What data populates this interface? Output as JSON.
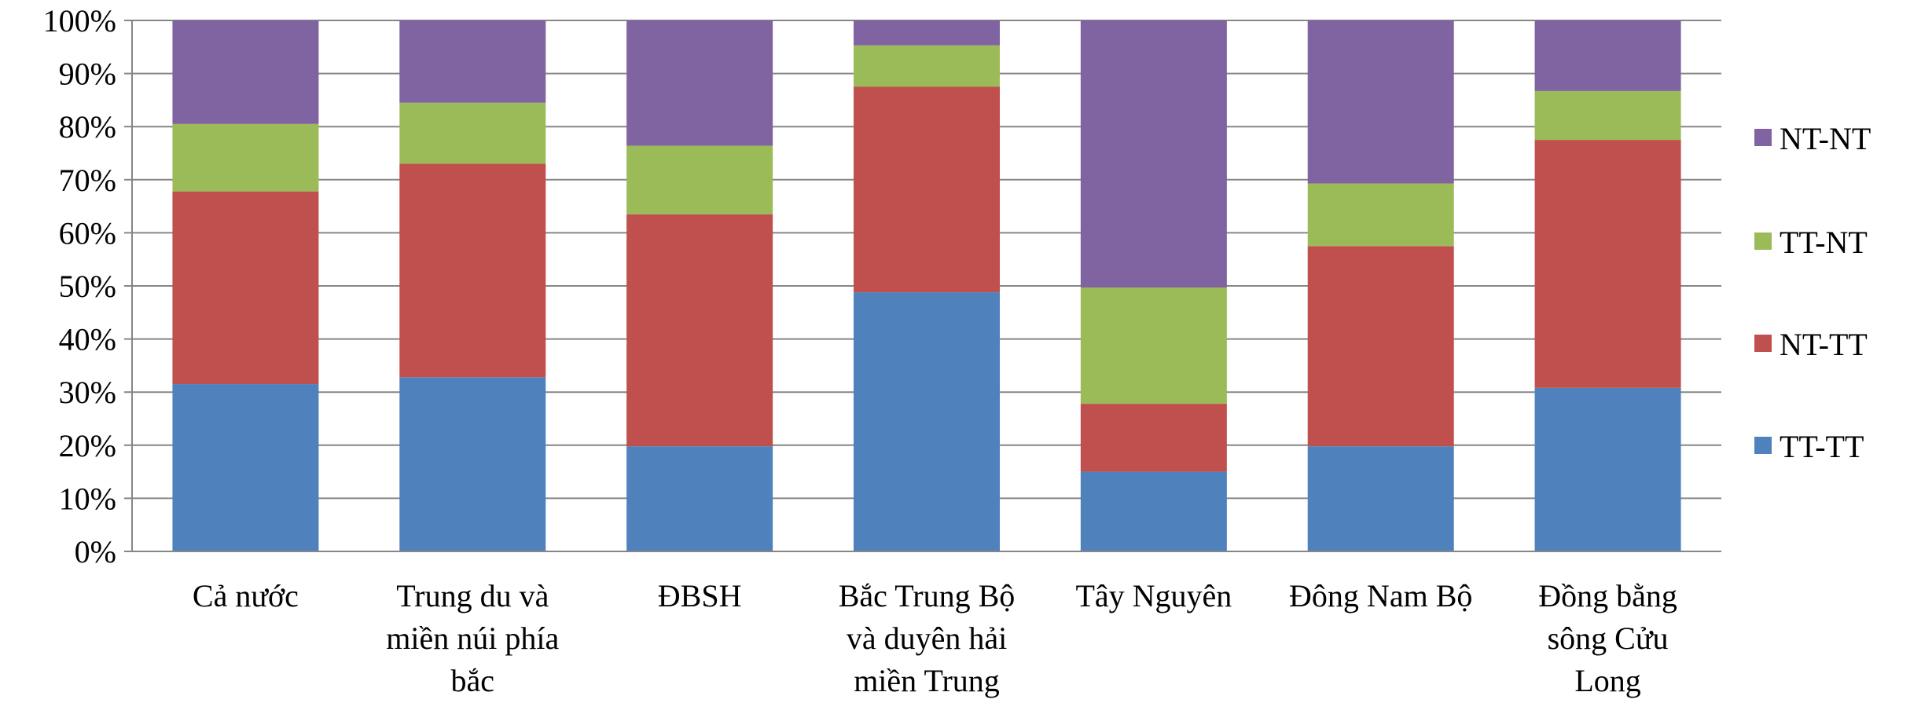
{
  "chart_data": {
    "type": "bar",
    "stacked": true,
    "percent_stacked": true,
    "categories": [
      [
        "Cả nước"
      ],
      [
        "Trung du và",
        "miền núi phía",
        "bắc"
      ],
      [
        "ĐBSH"
      ],
      [
        "Bắc Trung Bộ",
        "và duyên hải",
        "miền Trung"
      ],
      [
        "Tây Nguyên"
      ],
      [
        "Đông Nam Bộ"
      ],
      [
        "Đồng bằng",
        "sông Cửu",
        "Long"
      ]
    ],
    "series": [
      {
        "name": "TT-TT",
        "color": "#4F81BD",
        "values": [
          31.5,
          32.8,
          19.8,
          48.8,
          15.0,
          19.8,
          30.8
        ]
      },
      {
        "name": "NT-TT",
        "color": "#C0504D",
        "values": [
          36.3,
          40.2,
          43.7,
          38.7,
          12.8,
          37.7,
          46.7
        ]
      },
      {
        "name": "TT-NT",
        "color": "#9BBB59",
        "values": [
          12.7,
          11.5,
          12.9,
          7.8,
          21.9,
          11.8,
          9.2
        ]
      },
      {
        "name": "NT-NT",
        "color": "#8064A2",
        "values": [
          19.5,
          15.5,
          23.6,
          4.7,
          50.3,
          30.7,
          13.3
        ]
      }
    ],
    "yticks": [
      "0%",
      "10%",
      "20%",
      "30%",
      "40%",
      "50%",
      "60%",
      "70%",
      "80%",
      "90%",
      "100%"
    ],
    "ylim": [
      0,
      100
    ],
    "grid": true,
    "legend_position": "right",
    "legend_order": [
      "NT-NT",
      "TT-NT",
      "NT-TT",
      "TT-TT"
    ]
  }
}
